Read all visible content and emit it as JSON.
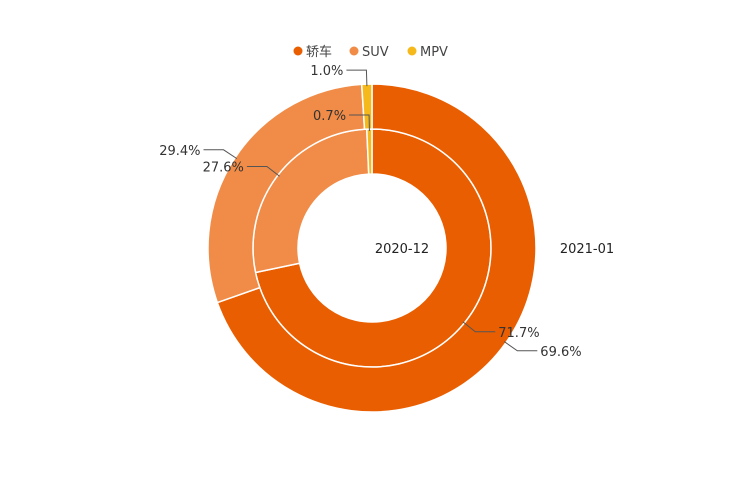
{
  "chart_data": {
    "type": "pie",
    "variant": "nested-donut",
    "categories": [
      "轿车",
      "SUV",
      "MPV"
    ],
    "colors": [
      "#e95e00",
      "#f08c47",
      "#f5b91c"
    ],
    "legend_position": "top",
    "series": [
      {
        "name": "2020-12",
        "ring": "inner",
        "values": [
          71.7,
          27.6,
          0.7
        ],
        "labels": [
          "71.7%",
          "27.6%",
          "0.7%"
        ]
      },
      {
        "name": "2021-01",
        "ring": "outer",
        "values": [
          69.6,
          29.4,
          1.0
        ],
        "labels": [
          "69.6%",
          "29.4%",
          "1.0%"
        ]
      }
    ]
  }
}
